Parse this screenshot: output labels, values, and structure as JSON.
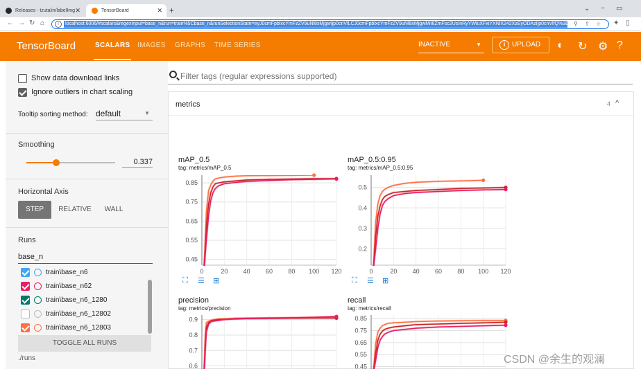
{
  "browser": {
    "tabs": [
      {
        "title": "Releases · tzutalin/labelImg",
        "favicon": "github-icon"
      },
      {
        "title": "TensorBoard",
        "favicon": "tensorboard-icon"
      }
    ],
    "url": "localhost:6006/#scalars&regexInput=base_n&run=train%5Cbase_n&runSelectionState=eyJ0cmFpblxcYmFzZV9uNl8xMjgwIjp0cnVlLCJ0cmFpblxcYmFzZV9uNl8xMjgwMiI6ZmFsc2UsInRyYWluXFxiYXNlX242XzEyODAzIjp0cnVlfQ%3D%3D"
  },
  "header": {
    "brand": "TensorBoard",
    "tabs": [
      "SCALARS",
      "IMAGES",
      "GRAPHS",
      "TIME SERIES"
    ],
    "active_tab": "SCALARS",
    "status": "INACTIVE",
    "upload_label": "UPLOAD",
    "color": "#f57c00"
  },
  "sidebar": {
    "show_download": "Show data download links",
    "ignore_outliers": "Ignore outliers in chart scaling",
    "tooltip_label": "Tooltip sorting method:",
    "tooltip_value": "default",
    "smoothing_title": "Smoothing",
    "smoothing_value": "0.337",
    "smoothing_level": 0.337,
    "axis_title": "Horizontal Axis",
    "axis_options": [
      "STEP",
      "RELATIVE",
      "WALL"
    ],
    "runs_title": "Runs",
    "runs_filter": "base_n",
    "runs": [
      {
        "name": "train\\base_n6",
        "checked": true,
        "color": "#42a5f5"
      },
      {
        "name": "train\\base_n62",
        "checked": true,
        "color": "#e91e63"
      },
      {
        "name": "train\\base_n6_1280",
        "checked": true,
        "color": "#00796b"
      },
      {
        "name": "train\\base_n6_12802",
        "checked": false,
        "color": "#bdbdbd"
      },
      {
        "name": "train\\base_n6_12803",
        "checked": true,
        "color": "#ff7043"
      }
    ],
    "toggle_label": "TOGGLE ALL RUNS",
    "logdir": "./runs"
  },
  "main": {
    "filter_placeholder": "Filter tags (regular expressions supported)",
    "category": "metrics",
    "count": "4"
  },
  "chart_data": [
    {
      "type": "line",
      "title": "mAP_0.5",
      "subtitle": "tag: metrics/mAP_0.5",
      "xlim": [
        0,
        120
      ],
      "ylim": [
        0.42,
        0.89
      ],
      "xticks": [
        "0",
        "20",
        "40",
        "60",
        "80",
        "100",
        "120"
      ],
      "yticks": [
        "0.45",
        "0.55",
        "0.65",
        "0.75",
        "0.85"
      ],
      "ytick_values": [
        0.45,
        0.55,
        0.65,
        0.75,
        0.85
      ],
      "series": [
        {
          "color": "#ff7043",
          "x": [
            2,
            4,
            6,
            8,
            10,
            12,
            15,
            20,
            30,
            40,
            60,
            80,
            100
          ],
          "y": [
            0.4,
            0.7,
            0.81,
            0.84,
            0.86,
            0.87,
            0.875,
            0.88,
            0.885,
            0.887,
            0.888,
            0.889,
            0.89
          ]
        },
        {
          "color": "#c62828",
          "x": [
            2,
            4,
            6,
            8,
            10,
            12,
            15,
            20,
            30,
            40,
            60,
            80,
            100,
            120
          ],
          "y": [
            0.4,
            0.62,
            0.74,
            0.8,
            0.83,
            0.845,
            0.85,
            0.855,
            0.86,
            0.865,
            0.868,
            0.87,
            0.872,
            0.872
          ]
        },
        {
          "color": "#e91e63",
          "x": [
            2,
            4,
            6,
            8,
            10,
            12,
            15,
            20,
            30,
            40,
            60,
            80,
            100,
            120
          ],
          "y": [
            0.4,
            0.55,
            0.68,
            0.76,
            0.8,
            0.82,
            0.835,
            0.845,
            0.852,
            0.857,
            0.862,
            0.866,
            0.868,
            0.87
          ]
        }
      ]
    },
    {
      "type": "line",
      "title": "mAP_0.5:0.95",
      "subtitle": "tag: metrics/mAP_0.5:0.95",
      "xlim": [
        0,
        120
      ],
      "ylim": [
        0.12,
        0.56
      ],
      "xticks": [
        "0",
        "20",
        "40",
        "60",
        "80",
        "100",
        "120"
      ],
      "yticks": [
        "0.2",
        "0.3",
        "0.4",
        "0.5"
      ],
      "ytick_values": [
        0.2,
        0.3,
        0.4,
        0.5
      ],
      "series": [
        {
          "color": "#ff7043",
          "x": [
            2,
            4,
            6,
            8,
            10,
            12,
            15,
            20,
            30,
            40,
            60,
            80,
            100
          ],
          "y": [
            0.1,
            0.33,
            0.42,
            0.46,
            0.48,
            0.49,
            0.5,
            0.51,
            0.52,
            0.525,
            0.53,
            0.532,
            0.535
          ]
        },
        {
          "color": "#c62828",
          "x": [
            2,
            4,
            6,
            8,
            10,
            12,
            15,
            20,
            30,
            40,
            60,
            80,
            100,
            120
          ],
          "y": [
            0.1,
            0.26,
            0.36,
            0.41,
            0.44,
            0.455,
            0.465,
            0.475,
            0.48,
            0.485,
            0.49,
            0.495,
            0.497,
            0.5
          ]
        },
        {
          "color": "#e91e63",
          "x": [
            2,
            4,
            6,
            8,
            10,
            12,
            15,
            20,
            30,
            40,
            60,
            80,
            100,
            120
          ],
          "y": [
            0.1,
            0.2,
            0.3,
            0.37,
            0.41,
            0.43,
            0.445,
            0.46,
            0.47,
            0.475,
            0.48,
            0.485,
            0.488,
            0.49
          ]
        }
      ]
    },
    {
      "type": "line",
      "title": "precision",
      "subtitle": "tag: metrics/precision",
      "xlim": [
        0,
        120
      ],
      "ylim": [
        0.58,
        0.93
      ],
      "xticks": [],
      "yticks": [
        "0.6",
        "0.7",
        "0.8",
        "0.9"
      ],
      "ytick_values": [
        0.6,
        0.7,
        0.8,
        0.9
      ],
      "series": [
        {
          "color": "#ff7043",
          "x": [
            2,
            3,
            4,
            6,
            8,
            10,
            15,
            20,
            30,
            40,
            60,
            80,
            100,
            120
          ],
          "y": [
            0.55,
            0.8,
            0.88,
            0.89,
            0.895,
            0.9,
            0.905,
            0.905,
            0.91,
            0.91,
            0.912,
            0.913,
            0.914,
            0.915
          ]
        },
        {
          "color": "#c62828",
          "x": [
            2,
            3,
            4,
            6,
            8,
            10,
            15,
            20,
            30,
            40,
            60,
            80,
            100,
            120
          ],
          "y": [
            0.55,
            0.75,
            0.85,
            0.88,
            0.89,
            0.895,
            0.9,
            0.902,
            0.905,
            0.907,
            0.908,
            0.909,
            0.91,
            0.91
          ]
        },
        {
          "color": "#e91e63",
          "x": [
            2,
            3,
            4,
            6,
            8,
            10,
            15,
            20,
            30,
            40,
            60,
            80,
            100,
            120
          ],
          "y": [
            0.55,
            0.7,
            0.82,
            0.87,
            0.885,
            0.89,
            0.895,
            0.9,
            0.905,
            0.908,
            0.91,
            0.912,
            0.915,
            0.92
          ]
        }
      ]
    },
    {
      "type": "line",
      "title": "recall",
      "subtitle": "tag: metrics/recall",
      "xlim": [
        0,
        120
      ],
      "ylim": [
        0.43,
        0.88
      ],
      "xticks": [],
      "yticks": [
        "0.45",
        "0.55",
        "0.65",
        "0.75",
        "0.85"
      ],
      "ytick_values": [
        0.45,
        0.55,
        0.65,
        0.75,
        0.85
      ],
      "series": [
        {
          "color": "#ff7043",
          "x": [
            2,
            4,
            6,
            8,
            10,
            12,
            15,
            20,
            30,
            40,
            60,
            80,
            100,
            120
          ],
          "y": [
            0.4,
            0.64,
            0.74,
            0.77,
            0.79,
            0.8,
            0.81,
            0.815,
            0.82,
            0.825,
            0.83,
            0.832,
            0.835,
            0.835
          ]
        },
        {
          "color": "#c62828",
          "x": [
            2,
            4,
            6,
            8,
            10,
            12,
            15,
            20,
            30,
            40,
            60,
            80,
            100,
            120
          ],
          "y": [
            0.4,
            0.56,
            0.67,
            0.72,
            0.745,
            0.76,
            0.77,
            0.78,
            0.79,
            0.8,
            0.805,
            0.81,
            0.815,
            0.82
          ]
        },
        {
          "color": "#e91e63",
          "x": [
            2,
            4,
            6,
            8,
            10,
            12,
            15,
            20,
            30,
            40,
            60,
            80,
            100,
            120
          ],
          "y": [
            0.4,
            0.5,
            0.61,
            0.67,
            0.7,
            0.72,
            0.735,
            0.75,
            0.76,
            0.77,
            0.78,
            0.785,
            0.79,
            0.795
          ]
        }
      ]
    }
  ],
  "watermark": "CSDN @余生的观澜"
}
